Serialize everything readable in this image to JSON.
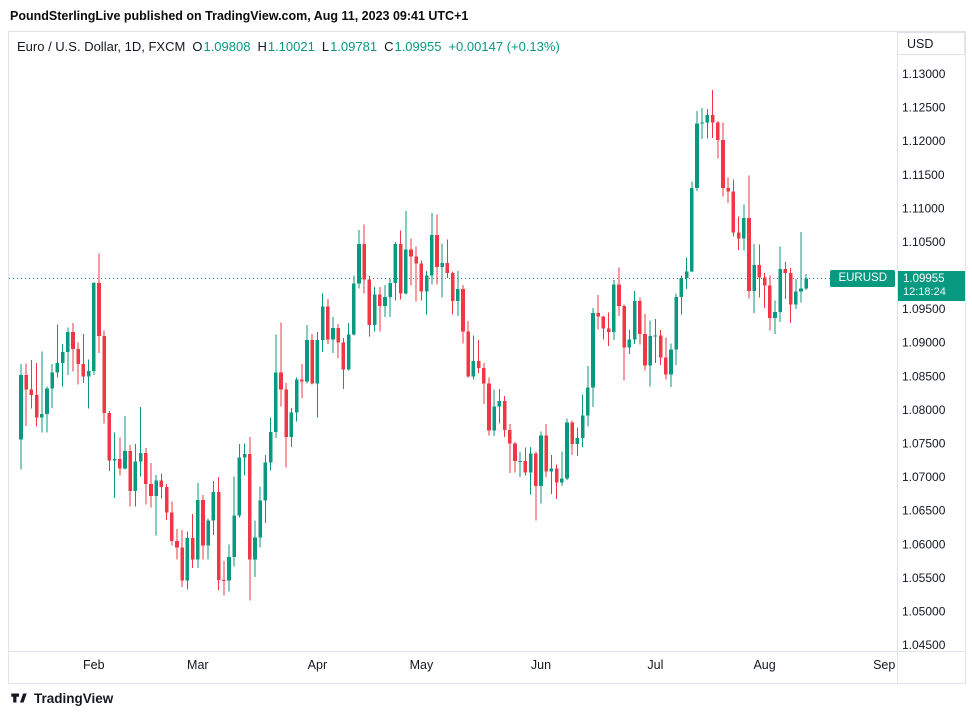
{
  "attribution": "PoundSterlingLive published on TradingView.com, Aug 11, 2023 09:41 UTC+1",
  "toolbar": {
    "currency_label": "USD"
  },
  "legend": {
    "title": "Euro / U.S. Dollar, 1D, FXCM",
    "open_label": "O",
    "open_value": "1.09808",
    "high_label": "H",
    "high_value": "1.10021",
    "low_label": "L",
    "low_value": "1.09781",
    "close_label": "C",
    "close_value": "1.09955",
    "change_value": "+0.00147 (+0.13%)"
  },
  "price_line": {
    "symbol_label": "EURUSD",
    "price_label": "1.09955",
    "countdown": "12:18:24"
  },
  "footer": {
    "brand": "TradingView"
  },
  "colors": {
    "up": "#089981",
    "down": "#f23645",
    "accent": "#089981",
    "text": "#131722",
    "grid_border": "#e0e3eb"
  },
  "chart_data": {
    "type": "candlestick",
    "title": "Euro / U.S. Dollar",
    "symbol": "EURUSD",
    "exchange": "FXCM",
    "interval": "1D",
    "xlabel": "",
    "ylabel": "",
    "grid": false,
    "ylim": [
      1.04411,
      1.13625
    ],
    "last_price": 1.09955,
    "y_ticks": [
      1.13,
      1.125,
      1.12,
      1.115,
      1.11,
      1.105,
      1.095,
      1.09,
      1.085,
      1.08,
      1.075,
      1.07,
      1.065,
      1.06,
      1.055,
      1.05,
      1.045
    ],
    "y_tick_hidden_by_badge": 1.1,
    "x_ticks": [
      {
        "label": "Feb",
        "bar": 14
      },
      {
        "label": "Mar",
        "bar": 34
      },
      {
        "label": "Apr",
        "bar": 57
      },
      {
        "label": "May",
        "bar": 77
      },
      {
        "label": "Jun",
        "bar": 100
      },
      {
        "label": "Jul",
        "bar": 122
      },
      {
        "label": "Aug",
        "bar": 143
      },
      {
        "label": "Sep",
        "bar": 166
      }
    ],
    "columns": [
      "date",
      "open",
      "high",
      "low",
      "close"
    ],
    "candles": [
      [
        "2023-01-12",
        1.0756,
        1.0868,
        1.0711,
        1.0852
      ],
      [
        "2023-01-13",
        1.0852,
        1.0869,
        1.0776,
        1.083
      ],
      [
        "2023-01-16",
        1.083,
        1.0874,
        1.0802,
        1.0822
      ],
      [
        "2023-01-17",
        1.0822,
        1.087,
        1.0775,
        1.0789
      ],
      [
        "2023-01-18",
        1.0789,
        1.0887,
        1.0766,
        1.0794
      ],
      [
        "2023-01-19",
        1.0794,
        1.0835,
        1.0766,
        1.0832
      ],
      [
        "2023-01-20",
        1.0832,
        1.0868,
        1.0803,
        1.0856
      ],
      [
        "2023-01-23",
        1.0856,
        1.0927,
        1.0848,
        1.087
      ],
      [
        "2023-01-24",
        1.087,
        1.0898,
        1.0835,
        1.0886
      ],
      [
        "2023-01-25",
        1.0886,
        1.0923,
        1.0852,
        1.0916
      ],
      [
        "2023-01-26",
        1.0916,
        1.0929,
        1.0857,
        1.0891
      ],
      [
        "2023-01-27",
        1.0891,
        1.09,
        1.0838,
        1.0868
      ],
      [
        "2023-01-30",
        1.0868,
        1.0913,
        1.084,
        1.085
      ],
      [
        "2023-01-31",
        1.085,
        1.0875,
        1.0802,
        1.0858
      ],
      [
        "2023-02-01",
        1.0858,
        1.099,
        1.0852,
        1.0989
      ],
      [
        "2023-02-02",
        1.0989,
        1.1033,
        1.0885,
        1.091
      ],
      [
        "2023-02-03",
        1.091,
        1.0918,
        1.078,
        1.0795
      ],
      [
        "2023-02-06",
        1.0795,
        1.0798,
        1.0709,
        1.0725
      ],
      [
        "2023-02-07",
        1.0725,
        1.0766,
        1.0669,
        1.0727
      ],
      [
        "2023-02-08",
        1.0727,
        1.0759,
        1.0702,
        1.0713
      ],
      [
        "2023-02-09",
        1.0713,
        1.0791,
        1.0711,
        1.0739
      ],
      [
        "2023-02-10",
        1.0739,
        1.0748,
        1.0656,
        1.0679
      ],
      [
        "2023-02-13",
        1.0679,
        1.0749,
        1.0656,
        1.0723
      ],
      [
        "2023-02-14",
        1.0723,
        1.0804,
        1.0701,
        1.0736
      ],
      [
        "2023-02-15",
        1.0736,
        1.0743,
        1.0659,
        1.069
      ],
      [
        "2023-02-16",
        1.069,
        1.0721,
        1.0655,
        1.0672
      ],
      [
        "2023-02-17",
        1.0672,
        1.0703,
        1.0613,
        1.0695
      ],
      [
        "2023-02-20",
        1.0695,
        1.0705,
        1.0668,
        1.0685
      ],
      [
        "2023-02-21",
        1.0685,
        1.069,
        1.0636,
        1.0647
      ],
      [
        "2023-02-22",
        1.0647,
        1.0664,
        1.0598,
        1.0605
      ],
      [
        "2023-02-23",
        1.0605,
        1.0623,
        1.0577,
        1.0595
      ],
      [
        "2023-02-24",
        1.0595,
        1.0621,
        1.0536,
        1.0546
      ],
      [
        "2023-02-27",
        1.0546,
        1.0619,
        1.0533,
        1.0609
      ],
      [
        "2023-02-28",
        1.0609,
        1.0645,
        1.0565,
        1.0577
      ],
      [
        "2023-03-01",
        1.0577,
        1.0691,
        1.0565,
        1.0666
      ],
      [
        "2023-03-02",
        1.0666,
        1.0673,
        1.0577,
        1.0598
      ],
      [
        "2023-03-03",
        1.0598,
        1.0638,
        1.0577,
        1.0635
      ],
      [
        "2023-03-06",
        1.0635,
        1.0694,
        1.0614,
        1.0678
      ],
      [
        "2023-03-07",
        1.0678,
        1.07,
        1.0532,
        1.0547
      ],
      [
        "2023-03-08",
        1.0547,
        1.0575,
        1.0524,
        1.0546
      ],
      [
        "2023-03-09",
        1.0546,
        1.06,
        1.053,
        1.0581
      ],
      [
        "2023-03-10",
        1.0581,
        1.0701,
        1.0567,
        1.0643
      ],
      [
        "2023-03-13",
        1.0643,
        1.0749,
        1.064,
        1.0729
      ],
      [
        "2023-03-14",
        1.0729,
        1.075,
        1.0702,
        1.0734
      ],
      [
        "2023-03-15",
        1.0734,
        1.076,
        1.0516,
        1.0577
      ],
      [
        "2023-03-16",
        1.0577,
        1.0635,
        1.0551,
        1.061
      ],
      [
        "2023-03-17",
        1.061,
        1.0686,
        1.0595,
        1.0665
      ],
      [
        "2023-03-20",
        1.0665,
        1.0733,
        1.0632,
        1.0722
      ],
      [
        "2023-03-21",
        1.0722,
        1.0789,
        1.071,
        1.0767
      ],
      [
        "2023-03-22",
        1.0767,
        1.0912,
        1.0758,
        1.0856
      ],
      [
        "2023-03-23",
        1.0856,
        1.093,
        1.0805,
        1.083
      ],
      [
        "2023-03-24",
        1.083,
        1.084,
        1.0714,
        1.076
      ],
      [
        "2023-03-27",
        1.076,
        1.0803,
        1.0745,
        1.0796
      ],
      [
        "2023-03-28",
        1.0796,
        1.0848,
        1.0783,
        1.0845
      ],
      [
        "2023-03-29",
        1.0845,
        1.0868,
        1.0818,
        1.0842
      ],
      [
        "2023-03-30",
        1.0842,
        1.0926,
        1.0839,
        1.0904
      ],
      [
        "2023-03-31",
        1.0904,
        1.0913,
        1.0838,
        1.0839
      ],
      [
        "2023-04-03",
        1.0839,
        1.0916,
        1.0789,
        1.0904
      ],
      [
        "2023-04-04",
        1.0904,
        1.0973,
        1.0886,
        1.0954
      ],
      [
        "2023-04-05",
        1.0954,
        1.0965,
        1.0898,
        1.0905
      ],
      [
        "2023-04-06",
        1.0905,
        1.0938,
        1.0885,
        1.0922
      ],
      [
        "2023-04-07",
        1.0922,
        1.0928,
        1.0877,
        1.09
      ],
      [
        "2023-04-10",
        1.09,
        1.0907,
        1.0831,
        1.086
      ],
      [
        "2023-04-11",
        1.086,
        1.0929,
        1.0859,
        1.0912
      ],
      [
        "2023-04-12",
        1.0912,
        1.1,
        1.0911,
        1.0988
      ],
      [
        "2023-04-13",
        1.0988,
        1.1068,
        1.0981,
        1.1047
      ],
      [
        "2023-04-14",
        1.1047,
        1.1076,
        1.0973,
        1.0994
      ],
      [
        "2023-04-17",
        1.0994,
        1.0999,
        1.0909,
        1.0926
      ],
      [
        "2023-04-18",
        1.0926,
        1.0983,
        1.0917,
        1.0972
      ],
      [
        "2023-04-19",
        1.0972,
        1.0983,
        1.0917,
        1.0955
      ],
      [
        "2023-04-20",
        1.0955,
        1.0986,
        1.0938,
        1.0968
      ],
      [
        "2023-04-21",
        1.0968,
        1.0995,
        1.0938,
        1.0989
      ],
      [
        "2023-04-24",
        1.0989,
        1.105,
        1.0963,
        1.1047
      ],
      [
        "2023-04-25",
        1.1047,
        1.1067,
        1.0964,
        1.0973
      ],
      [
        "2023-04-26",
        1.0973,
        1.1096,
        1.0972,
        1.1039
      ],
      [
        "2023-04-27",
        1.1039,
        1.1055,
        1.0985,
        1.1028
      ],
      [
        "2023-04-28",
        1.1028,
        1.1043,
        1.0961,
        1.1018
      ],
      [
        "2023-05-01",
        1.1018,
        1.1022,
        1.0963,
        1.0976
      ],
      [
        "2023-05-02",
        1.0976,
        1.1007,
        1.0942,
        1.1
      ],
      [
        "2023-05-03",
        1.1,
        1.1093,
        1.0987,
        1.106
      ],
      [
        "2023-05-04",
        1.106,
        1.1091,
        1.0987,
        1.1013
      ],
      [
        "2023-05-05",
        1.1013,
        1.1048,
        1.0967,
        1.1019
      ],
      [
        "2023-05-08",
        1.1019,
        1.1054,
        1.0996,
        1.1004
      ],
      [
        "2023-05-09",
        1.1004,
        1.1006,
        1.0942,
        1.0962
      ],
      [
        "2023-05-10",
        1.0962,
        1.1007,
        1.094,
        1.098
      ],
      [
        "2023-05-11",
        1.098,
        1.0986,
        1.0899,
        1.0917
      ],
      [
        "2023-05-12",
        1.0917,
        1.0932,
        1.0848,
        1.085
      ],
      [
        "2023-05-15",
        1.085,
        1.0911,
        1.0845,
        1.0873
      ],
      [
        "2023-05-16",
        1.0873,
        1.0904,
        1.0855,
        1.0862
      ],
      [
        "2023-05-17",
        1.0862,
        1.087,
        1.0809,
        1.0839
      ],
      [
        "2023-05-18",
        1.0839,
        1.0848,
        1.0762,
        1.0769
      ],
      [
        "2023-05-19",
        1.0769,
        1.083,
        1.0761,
        1.0805
      ],
      [
        "2023-05-22",
        1.0805,
        1.0831,
        1.078,
        1.0813
      ],
      [
        "2023-05-23",
        1.0813,
        1.0821,
        1.076,
        1.077
      ],
      [
        "2023-05-24",
        1.077,
        1.0779,
        1.0706,
        1.075
      ],
      [
        "2023-05-25",
        1.075,
        1.0752,
        1.0707,
        1.0724
      ],
      [
        "2023-05-26",
        1.0724,
        1.0737,
        1.07,
        1.0724
      ],
      [
        "2023-05-29",
        1.0724,
        1.0744,
        1.0702,
        1.0707
      ],
      [
        "2023-05-30",
        1.0707,
        1.0745,
        1.0674,
        1.0735
      ],
      [
        "2023-05-31",
        1.0735,
        1.0738,
        1.0635,
        1.0687
      ],
      [
        "2023-06-01",
        1.0687,
        1.0768,
        1.0661,
        1.0762
      ],
      [
        "2023-06-02",
        1.0762,
        1.0779,
        1.07,
        1.0708
      ],
      [
        "2023-06-05",
        1.0708,
        1.0733,
        1.0675,
        1.0713
      ],
      [
        "2023-06-06",
        1.0713,
        1.0719,
        1.0667,
        1.0692
      ],
      [
        "2023-06-07",
        1.0692,
        1.0738,
        1.0687,
        1.0698
      ],
      [
        "2023-06-08",
        1.0698,
        1.0787,
        1.0696,
        1.0781
      ],
      [
        "2023-06-09",
        1.0781,
        1.0784,
        1.0733,
        1.0749
      ],
      [
        "2023-06-12",
        1.0749,
        1.0774,
        1.0731,
        1.0758
      ],
      [
        "2023-06-13",
        1.0758,
        1.0823,
        1.0745,
        1.0792
      ],
      [
        "2023-06-14",
        1.0792,
        1.0865,
        1.0775,
        1.0833
      ],
      [
        "2023-06-15",
        1.0833,
        1.0952,
        1.0804,
        1.0944
      ],
      [
        "2023-06-16",
        1.0944,
        1.0971,
        1.092,
        1.0939
      ],
      [
        "2023-06-19",
        1.0939,
        1.094,
        1.0905,
        1.0921
      ],
      [
        "2023-06-20",
        1.0921,
        1.0945,
        1.0895,
        1.0916
      ],
      [
        "2023-06-21",
        1.0916,
        1.0993,
        1.0904,
        1.0987
      ],
      [
        "2023-06-22",
        1.0987,
        1.1012,
        1.094,
        1.0955
      ],
      [
        "2023-06-23",
        1.0955,
        1.0957,
        1.0844,
        1.0893
      ],
      [
        "2023-06-26",
        1.0893,
        1.0919,
        1.0883,
        1.0905
      ],
      [
        "2023-06-27",
        1.0905,
        1.0977,
        1.0898,
        1.0962
      ],
      [
        "2023-06-28",
        1.0962,
        1.0967,
        1.0897,
        1.0913
      ],
      [
        "2023-06-29",
        1.0913,
        1.0943,
        1.0859,
        1.0866
      ],
      [
        "2023-06-30",
        1.0866,
        1.0933,
        1.0835,
        1.091
      ],
      [
        "2023-07-03",
        1.091,
        1.0935,
        1.087,
        1.0911
      ],
      [
        "2023-07-04",
        1.0911,
        1.0919,
        1.0867,
        1.0878
      ],
      [
        "2023-07-05",
        1.0878,
        1.0908,
        1.0845,
        1.0853
      ],
      [
        "2023-07-06",
        1.0853,
        1.0899,
        1.0834,
        1.089
      ],
      [
        "2023-07-07",
        1.089,
        1.0973,
        1.0867,
        1.0968
      ],
      [
        "2023-07-10",
        1.0968,
        1.1,
        1.0942,
        1.0996
      ],
      [
        "2023-07-11",
        1.0996,
        1.1027,
        1.098,
        1.1006
      ],
      [
        "2023-07-12",
        1.1006,
        1.114,
        1.1005,
        1.113
      ],
      [
        "2023-07-13",
        1.113,
        1.1245,
        1.1126,
        1.1226
      ],
      [
        "2023-07-14",
        1.1226,
        1.1249,
        1.1203,
        1.1228
      ],
      [
        "2023-07-17",
        1.1228,
        1.1248,
        1.1204,
        1.1239
      ],
      [
        "2023-07-18",
        1.1239,
        1.1276,
        1.1205,
        1.1228
      ],
      [
        "2023-07-19",
        1.1228,
        1.123,
        1.1174,
        1.1202
      ],
      [
        "2023-07-20",
        1.1202,
        1.1228,
        1.1118,
        1.113
      ],
      [
        "2023-07-21",
        1.113,
        1.1146,
        1.1108,
        1.1125
      ],
      [
        "2023-07-24",
        1.1125,
        1.1143,
        1.1058,
        1.1064
      ],
      [
        "2023-07-25",
        1.1064,
        1.1088,
        1.1038,
        1.1055
      ],
      [
        "2023-07-26",
        1.1055,
        1.1106,
        1.1037,
        1.1086
      ],
      [
        "2023-07-27",
        1.1086,
        1.1149,
        1.0966,
        1.0977
      ],
      [
        "2023-07-28",
        1.0977,
        1.1047,
        1.0944,
        1.1016
      ],
      [
        "2023-07-31",
        1.1016,
        1.1046,
        1.0967,
        1.0997
      ],
      [
        "2023-08-01",
        1.0997,
        1.1004,
        1.0952,
        1.0985
      ],
      [
        "2023-08-02",
        1.0985,
        1.1,
        1.0918,
        1.0937
      ],
      [
        "2023-08-03",
        1.0937,
        1.0963,
        1.0913,
        1.0946
      ],
      [
        "2023-08-04",
        1.0946,
        1.1043,
        1.0931,
        1.101
      ],
      [
        "2023-08-07",
        1.101,
        1.102,
        1.0965,
        1.1004
      ],
      [
        "2023-08-08",
        1.1004,
        1.1011,
        1.0929,
        1.0957
      ],
      [
        "2023-08-09",
        1.0957,
        1.0995,
        1.095,
        1.0976
      ],
      [
        "2023-08-10",
        1.0976,
        1.1065,
        1.096,
        1.0981
      ],
      [
        "2023-08-11",
        1.09808,
        1.10021,
        1.09781,
        1.09955
      ]
    ]
  }
}
